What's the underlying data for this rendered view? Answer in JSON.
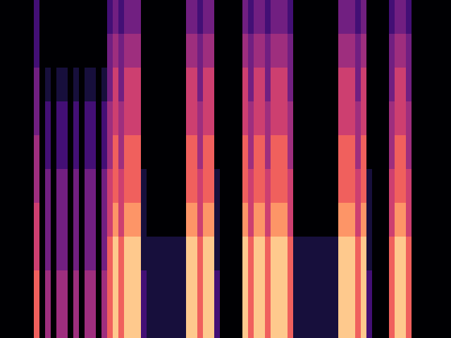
{
  "chart_data": {
    "type": "heatmap",
    "cells": [
      [
        0,
        0,
        0,
        0,
        0,
        0,
        2,
        0,
        0,
        0,
        0,
        0,
        0,
        0,
        0,
        0,
        0,
        0,
        0,
        2,
        3,
        2,
        3,
        3,
        3,
        0,
        0,
        0,
        0,
        0,
        0,
        0,
        0,
        3,
        3,
        2,
        3,
        3,
        0,
        0,
        0,
        0,
        0,
        3,
        2,
        3,
        3,
        2,
        3,
        3,
        3,
        2,
        0,
        0,
        0,
        0,
        0,
        0,
        0,
        0,
        3,
        3,
        3,
        2,
        3,
        0,
        0,
        0,
        0,
        2,
        3,
        3,
        2,
        0,
        0,
        0,
        0,
        0,
        0,
        0
      ],
      [
        0,
        0,
        0,
        0,
        0,
        0,
        2,
        0,
        0,
        0,
        0,
        0,
        0,
        0,
        0,
        0,
        0,
        0,
        0,
        3,
        4,
        3,
        4,
        4,
        4,
        0,
        0,
        0,
        0,
        0,
        0,
        0,
        0,
        4,
        4,
        3,
        4,
        4,
        0,
        0,
        0,
        0,
        0,
        4,
        3,
        4,
        4,
        3,
        4,
        4,
        4,
        3,
        0,
        0,
        0,
        0,
        0,
        0,
        0,
        0,
        4,
        4,
        4,
        3,
        4,
        0,
        0,
        0,
        0,
        3,
        4,
        4,
        3,
        0,
        0,
        0,
        0,
        0,
        0,
        0
      ],
      [
        0,
        0,
        0,
        0,
        0,
        0,
        3,
        0,
        1,
        0,
        1,
        1,
        0,
        1,
        0,
        1,
        1,
        0,
        1,
        3,
        5,
        3,
        5,
        5,
        5,
        0,
        0,
        0,
        0,
        0,
        0,
        0,
        0,
        5,
        5,
        3,
        5,
        5,
        0,
        0,
        0,
        0,
        0,
        5,
        3,
        5,
        5,
        3,
        5,
        5,
        5,
        3,
        0,
        0,
        0,
        0,
        0,
        0,
        0,
        0,
        5,
        5,
        5,
        3,
        5,
        0,
        0,
        0,
        0,
        3,
        5,
        5,
        3,
        0,
        0,
        0,
        0,
        0,
        0,
        0
      ],
      [
        0,
        0,
        0,
        0,
        0,
        0,
        3,
        0,
        2,
        0,
        2,
        2,
        0,
        2,
        0,
        2,
        2,
        0,
        2,
        4,
        5,
        4,
        5,
        5,
        5,
        0,
        0,
        0,
        0,
        0,
        0,
        0,
        0,
        5,
        5,
        4,
        5,
        5,
        0,
        0,
        0,
        0,
        0,
        5,
        4,
        5,
        5,
        4,
        5,
        5,
        5,
        4,
        0,
        0,
        0,
        0,
        0,
        0,
        0,
        0,
        5,
        5,
        5,
        4,
        5,
        0,
        0,
        0,
        0,
        4,
        5,
        5,
        4,
        0,
        0,
        0,
        0,
        0,
        0,
        0
      ],
      [
        0,
        0,
        0,
        0,
        0,
        0,
        4,
        0,
        2,
        0,
        2,
        2,
        0,
        2,
        0,
        2,
        2,
        0,
        2,
        4,
        6,
        4,
        6,
        6,
        6,
        0,
        0,
        0,
        0,
        0,
        0,
        0,
        0,
        6,
        6,
        4,
        6,
        6,
        0,
        0,
        0,
        0,
        0,
        6,
        4,
        6,
        6,
        4,
        6,
        6,
        6,
        4,
        0,
        0,
        0,
        0,
        0,
        0,
        0,
        0,
        6,
        6,
        6,
        4,
        6,
        0,
        0,
        0,
        0,
        4,
        6,
        6,
        4,
        0,
        0,
        0,
        0,
        0,
        0,
        0
      ],
      [
        0,
        0,
        0,
        0,
        0,
        0,
        4,
        0,
        3,
        0,
        3,
        3,
        0,
        3,
        0,
        3,
        3,
        0,
        3,
        5,
        6,
        5,
        6,
        6,
        6,
        1,
        0,
        0,
        0,
        0,
        0,
        0,
        0,
        6,
        6,
        5,
        6,
        6,
        1,
        0,
        0,
        0,
        0,
        6,
        5,
        6,
        6,
        5,
        6,
        6,
        6,
        5,
        0,
        0,
        0,
        0,
        0,
        0,
        0,
        0,
        6,
        6,
        6,
        5,
        6,
        1,
        0,
        0,
        0,
        5,
        6,
        6,
        5,
        0,
        0,
        0,
        0,
        0,
        0,
        0
      ],
      [
        0,
        0,
        0,
        0,
        0,
        0,
        5,
        0,
        3,
        0,
        3,
        3,
        0,
        3,
        0,
        3,
        3,
        0,
        3,
        5,
        7,
        5,
        7,
        7,
        7,
        1,
        0,
        0,
        0,
        0,
        0,
        0,
        0,
        7,
        7,
        5,
        7,
        7,
        1,
        0,
        0,
        0,
        0,
        7,
        5,
        7,
        7,
        5,
        7,
        7,
        7,
        5,
        0,
        0,
        0,
        0,
        0,
        0,
        0,
        0,
        7,
        7,
        7,
        5,
        7,
        1,
        0,
        0,
        0,
        5,
        7,
        7,
        5,
        0,
        0,
        0,
        0,
        0,
        0,
        0
      ],
      [
        0,
        0,
        0,
        0,
        0,
        0,
        5,
        0,
        3,
        0,
        3,
        3,
        0,
        3,
        0,
        3,
        3,
        0,
        3,
        6,
        8,
        6,
        8,
        8,
        8,
        1,
        1,
        1,
        1,
        1,
        1,
        1,
        1,
        8,
        8,
        6,
        8,
        8,
        1,
        0,
        0,
        0,
        0,
        8,
        6,
        8,
        8,
        6,
        8,
        8,
        8,
        6,
        1,
        1,
        1,
        1,
        1,
        1,
        1,
        1,
        8,
        8,
        8,
        6,
        8,
        1,
        0,
        0,
        0,
        6,
        8,
        8,
        6,
        0,
        0,
        0,
        0,
        0,
        0,
        0
      ],
      [
        0,
        0,
        0,
        0,
        0,
        0,
        6,
        0,
        4,
        0,
        4,
        4,
        0,
        4,
        0,
        4,
        4,
        0,
        4,
        6,
        8,
        6,
        8,
        8,
        8,
        2,
        1,
        1,
        1,
        1,
        1,
        1,
        1,
        8,
        8,
        6,
        8,
        8,
        2,
        0,
        0,
        0,
        0,
        8,
        6,
        8,
        8,
        6,
        8,
        8,
        8,
        6,
        1,
        1,
        1,
        1,
        1,
        1,
        1,
        1,
        8,
        8,
        8,
        6,
        8,
        2,
        0,
        0,
        0,
        6,
        8,
        8,
        6,
        0,
        0,
        0,
        0,
        0,
        0,
        0
      ],
      [
        0,
        0,
        0,
        0,
        0,
        0,
        6,
        0,
        4,
        0,
        4,
        4,
        0,
        4,
        0,
        4,
        4,
        0,
        4,
        6,
        8,
        6,
        8,
        8,
        8,
        2,
        1,
        1,
        1,
        1,
        1,
        1,
        1,
        8,
        8,
        6,
        8,
        8,
        2,
        0,
        0,
        0,
        0,
        8,
        6,
        8,
        8,
        6,
        8,
        8,
        8,
        6,
        1,
        1,
        1,
        1,
        1,
        1,
        1,
        1,
        8,
        8,
        8,
        6,
        8,
        2,
        0,
        0,
        0,
        6,
        8,
        8,
        6,
        0,
        0,
        0,
        0,
        0,
        0,
        0
      ]
    ],
    "clim": [
      0,
      9
    ],
    "tick_labels": false
  }
}
